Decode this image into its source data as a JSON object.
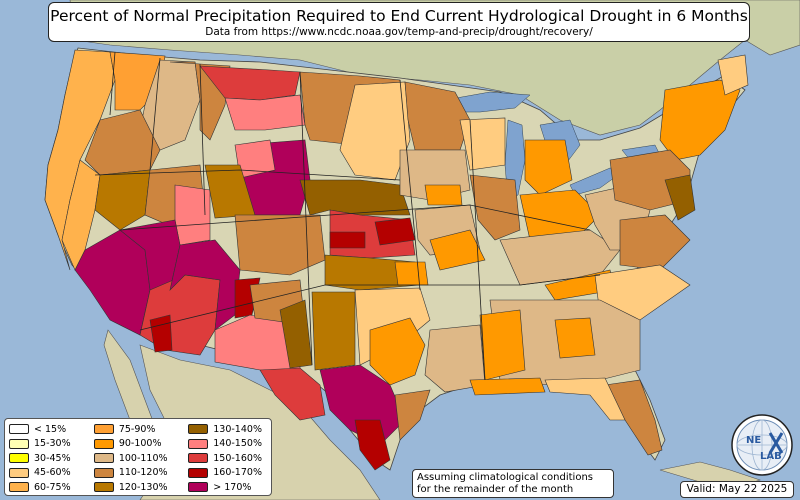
{
  "title": "Percent of Normal Precipitation Required to End Current Hydrological Drought in 6 Months",
  "subtitle": "Data from https://www.ncdc.noaa.gov/temp-and-precip/drought/recovery/",
  "legend": {
    "items": [
      {
        "label": "< 15%",
        "color": "#ffffff"
      },
      {
        "label": "15-30%",
        "color": "#ffffb4"
      },
      {
        "label": "30-45%",
        "color": "#ffff00"
      },
      {
        "label": "45-60%",
        "color": "#ffcc80"
      },
      {
        "label": "60-75%",
        "color": "#ffb24c"
      },
      {
        "label": "75-90%",
        "color": "#ffa033"
      },
      {
        "label": "90-100%",
        "color": "#ff9900"
      },
      {
        "label": "100-110%",
        "color": "#deb887"
      },
      {
        "label": "110-120%",
        "color": "#cd853f"
      },
      {
        "label": "120-130%",
        "color": "#b87800"
      },
      {
        "label": "130-140%",
        "color": "#946000"
      },
      {
        "label": "140-150%",
        "color": "#ff7f7f"
      },
      {
        "label": "150-160%",
        "color": "#dd3c3c"
      },
      {
        "label": "160-170%",
        "color": "#b40000"
      },
      {
        "label": "> 170%",
        "color": "#b0005a"
      }
    ]
  },
  "note": {
    "line1": "Assuming climatological conditions",
    "line2": "for the remainder of the month"
  },
  "valid": "Valid: May 22 2025",
  "logo": {
    "text_top": "NE",
    "text_bottom": "LAB",
    "icon": "nexlab-globe-logo"
  },
  "map": {
    "ocean_color": "#9ab8d8",
    "land_color": "#d9d6b4",
    "regions": [
      {
        "name": "pacific-nw-coast",
        "category": "60-75%"
      },
      {
        "name": "washington-east",
        "category": "75-90%"
      },
      {
        "name": "montana-west",
        "category": "120-130%"
      },
      {
        "name": "montana-east",
        "category": "160-170%"
      },
      {
        "name": "nevada-utah-south",
        "category": "> 170%"
      },
      {
        "name": "arizona-new-mexico",
        "category": "> 170%"
      },
      {
        "name": "colorado-front-range",
        "category": "130-140%"
      },
      {
        "name": "wyoming",
        "category": "> 170%"
      },
      {
        "name": "nebraska-kansas",
        "category": "130-140%"
      },
      {
        "name": "texas-south",
        "category": "> 170%"
      },
      {
        "name": "texas-west",
        "category": "150-160%"
      },
      {
        "name": "texas-deep-south",
        "category": "160-170%"
      },
      {
        "name": "ohio-valley",
        "category": "90-100%"
      },
      {
        "name": "southeast",
        "category": "100-110%"
      },
      {
        "name": "florida",
        "category": "110-120%"
      },
      {
        "name": "new-england",
        "category": "90-100%"
      }
    ]
  }
}
